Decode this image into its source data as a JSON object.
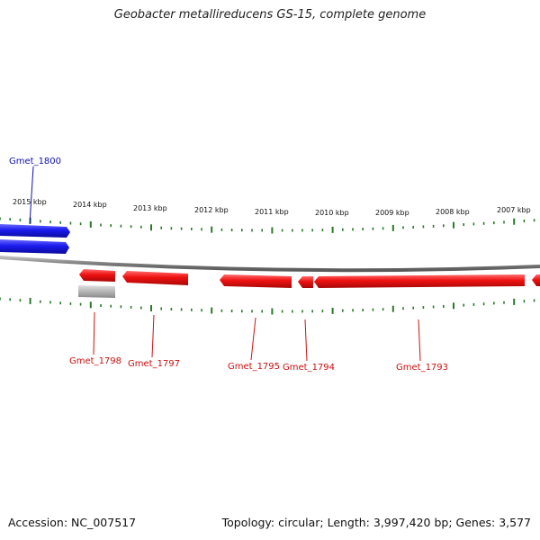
{
  "title": "Geobacter metallireducens GS-15, complete genome",
  "footer": {
    "accession": "Accession: NC_007517",
    "summary": "Topology: circular; Length: 3,997,420 bp; Genes: 3,577"
  },
  "colors": {
    "forward_strand": "#1a1aee",
    "reverse_strand": "#ee1111",
    "pseudo_gene": "#b4b4b4",
    "backbone": "#888888",
    "ticks": "#2a7a2a",
    "label_forward": "#1010b0",
    "label_reverse": "#cc1111"
  },
  "scale_ticks_kbp": [
    "2015 kbp",
    "2014 kbp",
    "2013 kbp",
    "2012 kbp",
    "2011 kbp",
    "2010 kbp",
    "2009 kbp",
    "2008 kbp",
    "2007 kbp"
  ],
  "genes": [
    {
      "label": "Gmet_1800",
      "strand": "forward"
    },
    {
      "label": "Gmet_1798",
      "strand": "reverse"
    },
    {
      "label": "Gmet_1797",
      "strand": "reverse"
    },
    {
      "label": "Gmet_1795",
      "strand": "reverse"
    },
    {
      "label": "Gmet_1794",
      "strand": "reverse"
    },
    {
      "label": "Gmet_1793",
      "strand": "reverse"
    }
  ]
}
